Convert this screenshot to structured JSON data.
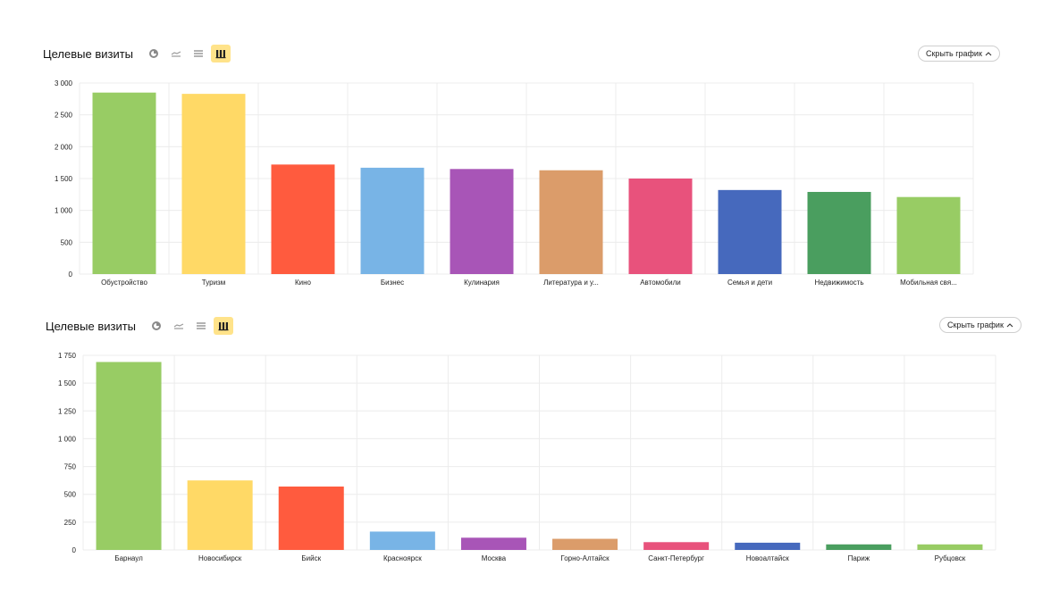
{
  "panels": [
    {
      "title": "Целевые визиты",
      "hide_label": "Скрыть график",
      "controls": [
        "pie-chart-icon",
        "line-chart-icon",
        "area-chart-icon",
        "bar-chart-icon"
      ],
      "active_control": "bar-chart-icon"
    },
    {
      "title": "Целевые визиты",
      "hide_label": "Скрыть график",
      "controls": [
        "pie-chart-icon",
        "line-chart-icon",
        "area-chart-icon",
        "bar-chart-icon"
      ],
      "active_control": "bar-chart-icon"
    }
  ],
  "colors": [
    "#98cc64",
    "#ffd966",
    "#ff5b3e",
    "#78b4e6",
    "#a855b7",
    "#db9c6a",
    "#e8527c",
    "#4669bd",
    "#4a9e5f",
    "#98cc64"
  ],
  "chart_data": [
    {
      "type": "bar",
      "categories": [
        "Обустройство",
        "Туризм",
        "Кино",
        "Бизнес",
        "Кулинария",
        "Литература и у...",
        "Автомобили",
        "Семья и дети",
        "Недвижимость",
        "Мобильная свя..."
      ],
      "values": [
        2850,
        2830,
        1720,
        1670,
        1650,
        1630,
        1500,
        1320,
        1290,
        1210
      ],
      "ylim": [
        0,
        3000
      ],
      "yticks": [
        0,
        500,
        1000,
        1500,
        2000,
        2500,
        3000
      ],
      "ytick_labels": [
        "0",
        "500",
        "1 000",
        "1 500",
        "2 000",
        "2 500",
        "3 000"
      ],
      "grid": true
    },
    {
      "type": "bar",
      "categories": [
        "Барнаул",
        "Новосибирск",
        "Бийск",
        "Красноярск",
        "Москва",
        "Горно-Алтайск",
        "Санкт-Петербург",
        "Новоалтайск",
        "Париж",
        "Рубцовск"
      ],
      "values": [
        1690,
        625,
        570,
        165,
        110,
        100,
        70,
        65,
        50,
        50
      ],
      "ylim": [
        0,
        1750
      ],
      "yticks": [
        0,
        250,
        500,
        750,
        1000,
        1250,
        1500,
        1750
      ],
      "ytick_labels": [
        "0",
        "250",
        "500",
        "750",
        "1 000",
        "1 250",
        "1 500",
        "1 750"
      ],
      "grid": true
    }
  ]
}
